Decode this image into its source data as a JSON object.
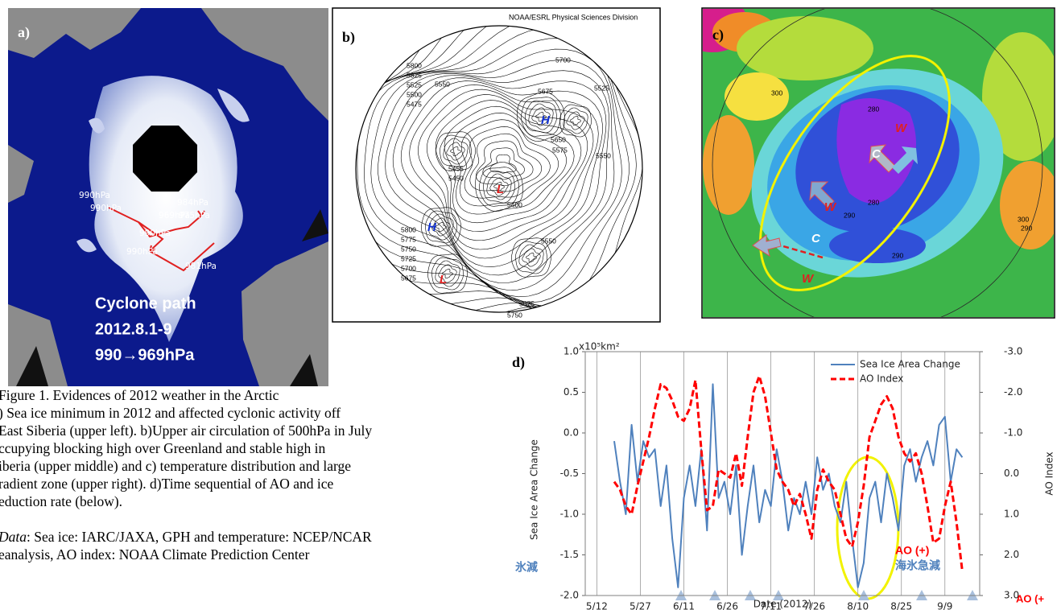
{
  "panels": {
    "a": {
      "label": "a)",
      "pressures": [
        "990hPa",
        "990hPa",
        "984hPa",
        "969hPa",
        "975hPa",
        "990hPa",
        "990hPa",
        "981hPa"
      ],
      "title_lines": [
        "Cyclone path",
        "2012.8.1-9",
        "990→969hPa"
      ]
    },
    "b": {
      "label": "b)",
      "source": "NOAA/ESRL Physical Sciences Division",
      "highs": [
        "H",
        "H"
      ],
      "lows": [
        "L",
        "L"
      ],
      "contours": [
        "5800",
        "5825",
        "5550",
        "5525",
        "5500",
        "5475",
        "5700",
        "5675",
        "5525",
        "5650",
        "5575",
        "5550",
        "5455",
        "5450",
        "5400",
        "5800",
        "5775",
        "5750",
        "5725",
        "5700",
        "5675",
        "5550",
        "5575",
        "5750"
      ]
    },
    "c": {
      "label": "c)",
      "cold": [
        "C",
        "C"
      ],
      "warm": [
        "W",
        "W",
        "W"
      ],
      "contours": [
        "300",
        "280",
        "280",
        "290",
        "290",
        "300",
        "290"
      ]
    },
    "d": {
      "label": "d)"
    }
  },
  "caption": {
    "lines": [
      "Figure 1. Evidences of 2012 weather in the Arctic",
      ") Sea ice minimum in 2012 and affected cyclonic activity off",
      "East Siberia (upper left). b)Upper air circulation of 500hPa in July",
      "ccupying blocking high over Greenland and stable high in",
      "iberia (upper middle) and c) temperature distribution and large",
      "radient zone (upper right). d)Time sequential of AO and ice",
      "eduction rate (below)."
    ],
    "data_label": "Data",
    "data_text": ": Sea ice: IARC/JAXA, GPH and temperature: NCEP/NCAR",
    "last_line": "eanalysis, AO index: NOAA Climate Prediction Center"
  },
  "chart_data": {
    "type": "line",
    "x_label": "Date (2012)",
    "y_label": "Sea Ice Area Change",
    "y2_label": "AO Index",
    "y_unit": "x10⁵km²",
    "x": [
      "5/18",
      "5/20",
      "5/22",
      "5/24",
      "5/26",
      "5/28",
      "5/30",
      "6/1",
      "6/3",
      "6/5",
      "6/7",
      "6/9",
      "6/11",
      "6/13",
      "6/15",
      "6/17",
      "6/19",
      "6/21",
      "6/23",
      "6/25",
      "6/27",
      "6/29",
      "7/1",
      "7/3",
      "7/5",
      "7/7",
      "7/9",
      "7/11",
      "7/13",
      "7/15",
      "7/17",
      "7/19",
      "7/21",
      "7/23",
      "7/25",
      "7/27",
      "7/29",
      "7/31",
      "8/2",
      "8/4",
      "8/6",
      "8/8",
      "8/10",
      "8/12",
      "8/14",
      "8/16",
      "8/18",
      "8/20",
      "8/22",
      "8/24",
      "8/26",
      "8/28",
      "8/30",
      "9/1",
      "9/3",
      "9/5",
      "9/7",
      "9/9",
      "9/11",
      "9/13",
      "9/15"
    ],
    "xlim": [
      "5/8",
      "9/21"
    ],
    "xticks": [
      "5/12",
      "5/27",
      "6/11",
      "6/26",
      "7/11",
      "7/26",
      "8/10",
      "8/25",
      "9/9"
    ],
    "ylim": [
      -2,
      1
    ],
    "yticks": [
      {
        "value": 1,
        "label": "1.0"
      },
      0.5,
      {
        "value": 0,
        "label": "0.0"
      },
      -0.5,
      {
        "value": -1,
        "label": "-1.0"
      },
      -1.5,
      {
        "value": -2,
        "label": "-2.0"
      }
    ],
    "y2lim": [
      3,
      -3
    ],
    "y2ticks": [
      {
        "value": -3,
        "label": "-3.0"
      },
      {
        "value": -2,
        "label": "-2.0"
      },
      {
        "value": -1,
        "label": "-1.0"
      },
      {
        "value": 0,
        "label": "0.0"
      },
      {
        "value": 1,
        "label": "1.0"
      },
      {
        "value": 2,
        "label": "2.0"
      },
      {
        "value": 3,
        "label": "3.0"
      }
    ],
    "grid": "x",
    "legend": "upper right",
    "series": [
      {
        "name": "Sea Ice Area Change",
        "color": "#4f81bd",
        "dash": "solid",
        "values": [
          -0.1,
          -0.6,
          -1.0,
          0.1,
          -0.6,
          -0.1,
          -0.3,
          -0.2,
          -0.9,
          -0.4,
          -1.3,
          -1.9,
          -0.8,
          -0.4,
          -0.9,
          -0.2,
          -1.2,
          0.6,
          -0.8,
          -0.6,
          -1.0,
          -0.4,
          -1.5,
          -0.9,
          -0.4,
          -1.1,
          -0.7,
          -0.9,
          -0.2,
          -0.6,
          -1.2,
          -0.8,
          -1.0,
          -0.6,
          -1.0,
          -0.3,
          -0.7,
          -0.5,
          -0.9,
          -1.1,
          -0.6,
          -1.3,
          -1.9,
          -1.6,
          -0.8,
          -0.6,
          -1.1,
          -0.5,
          -0.8,
          -1.2,
          -0.4,
          -0.2,
          -0.6,
          -0.3,
          -0.1,
          -0.4,
          0.1,
          0.2,
          -0.6,
          -0.2,
          -0.3
        ]
      },
      {
        "name": "AO Index",
        "color": "#ff0000",
        "dash": "dashed",
        "axis": "y2",
        "values": [
          0.2,
          0.4,
          0.8,
          1.0,
          0.3,
          -0.3,
          -0.9,
          -1.6,
          -2.2,
          -2.1,
          -1.8,
          -1.4,
          -1.3,
          -1.6,
          -2.3,
          -0.6,
          0.9,
          0.8,
          -0.1,
          0.0,
          0.1,
          -0.5,
          0.3,
          -0.9,
          -2.0,
          -2.4,
          -1.9,
          -1.0,
          -0.1,
          0.2,
          0.4,
          0.8,
          0.5,
          1.0,
          1.6,
          0.4,
          -0.1,
          0.2,
          0.4,
          1.0,
          1.6,
          1.8,
          1.2,
          0.3,
          -0.9,
          -1.3,
          -1.7,
          -1.9,
          -1.6,
          -0.9,
          -0.5,
          -0.3,
          -0.5,
          0.0,
          0.8,
          1.7,
          1.6,
          0.8,
          0.2,
          1.2,
          2.4
        ]
      }
    ],
    "annotations": [
      {
        "text": "AO (+)",
        "color": "#ff0000"
      },
      {
        "text": "海氷急減",
        "color": "#4f81bd"
      },
      {
        "text": "氷減",
        "color": "#4f81bd"
      },
      {
        "text": "AO (+",
        "color": "#ff0000"
      }
    ]
  }
}
